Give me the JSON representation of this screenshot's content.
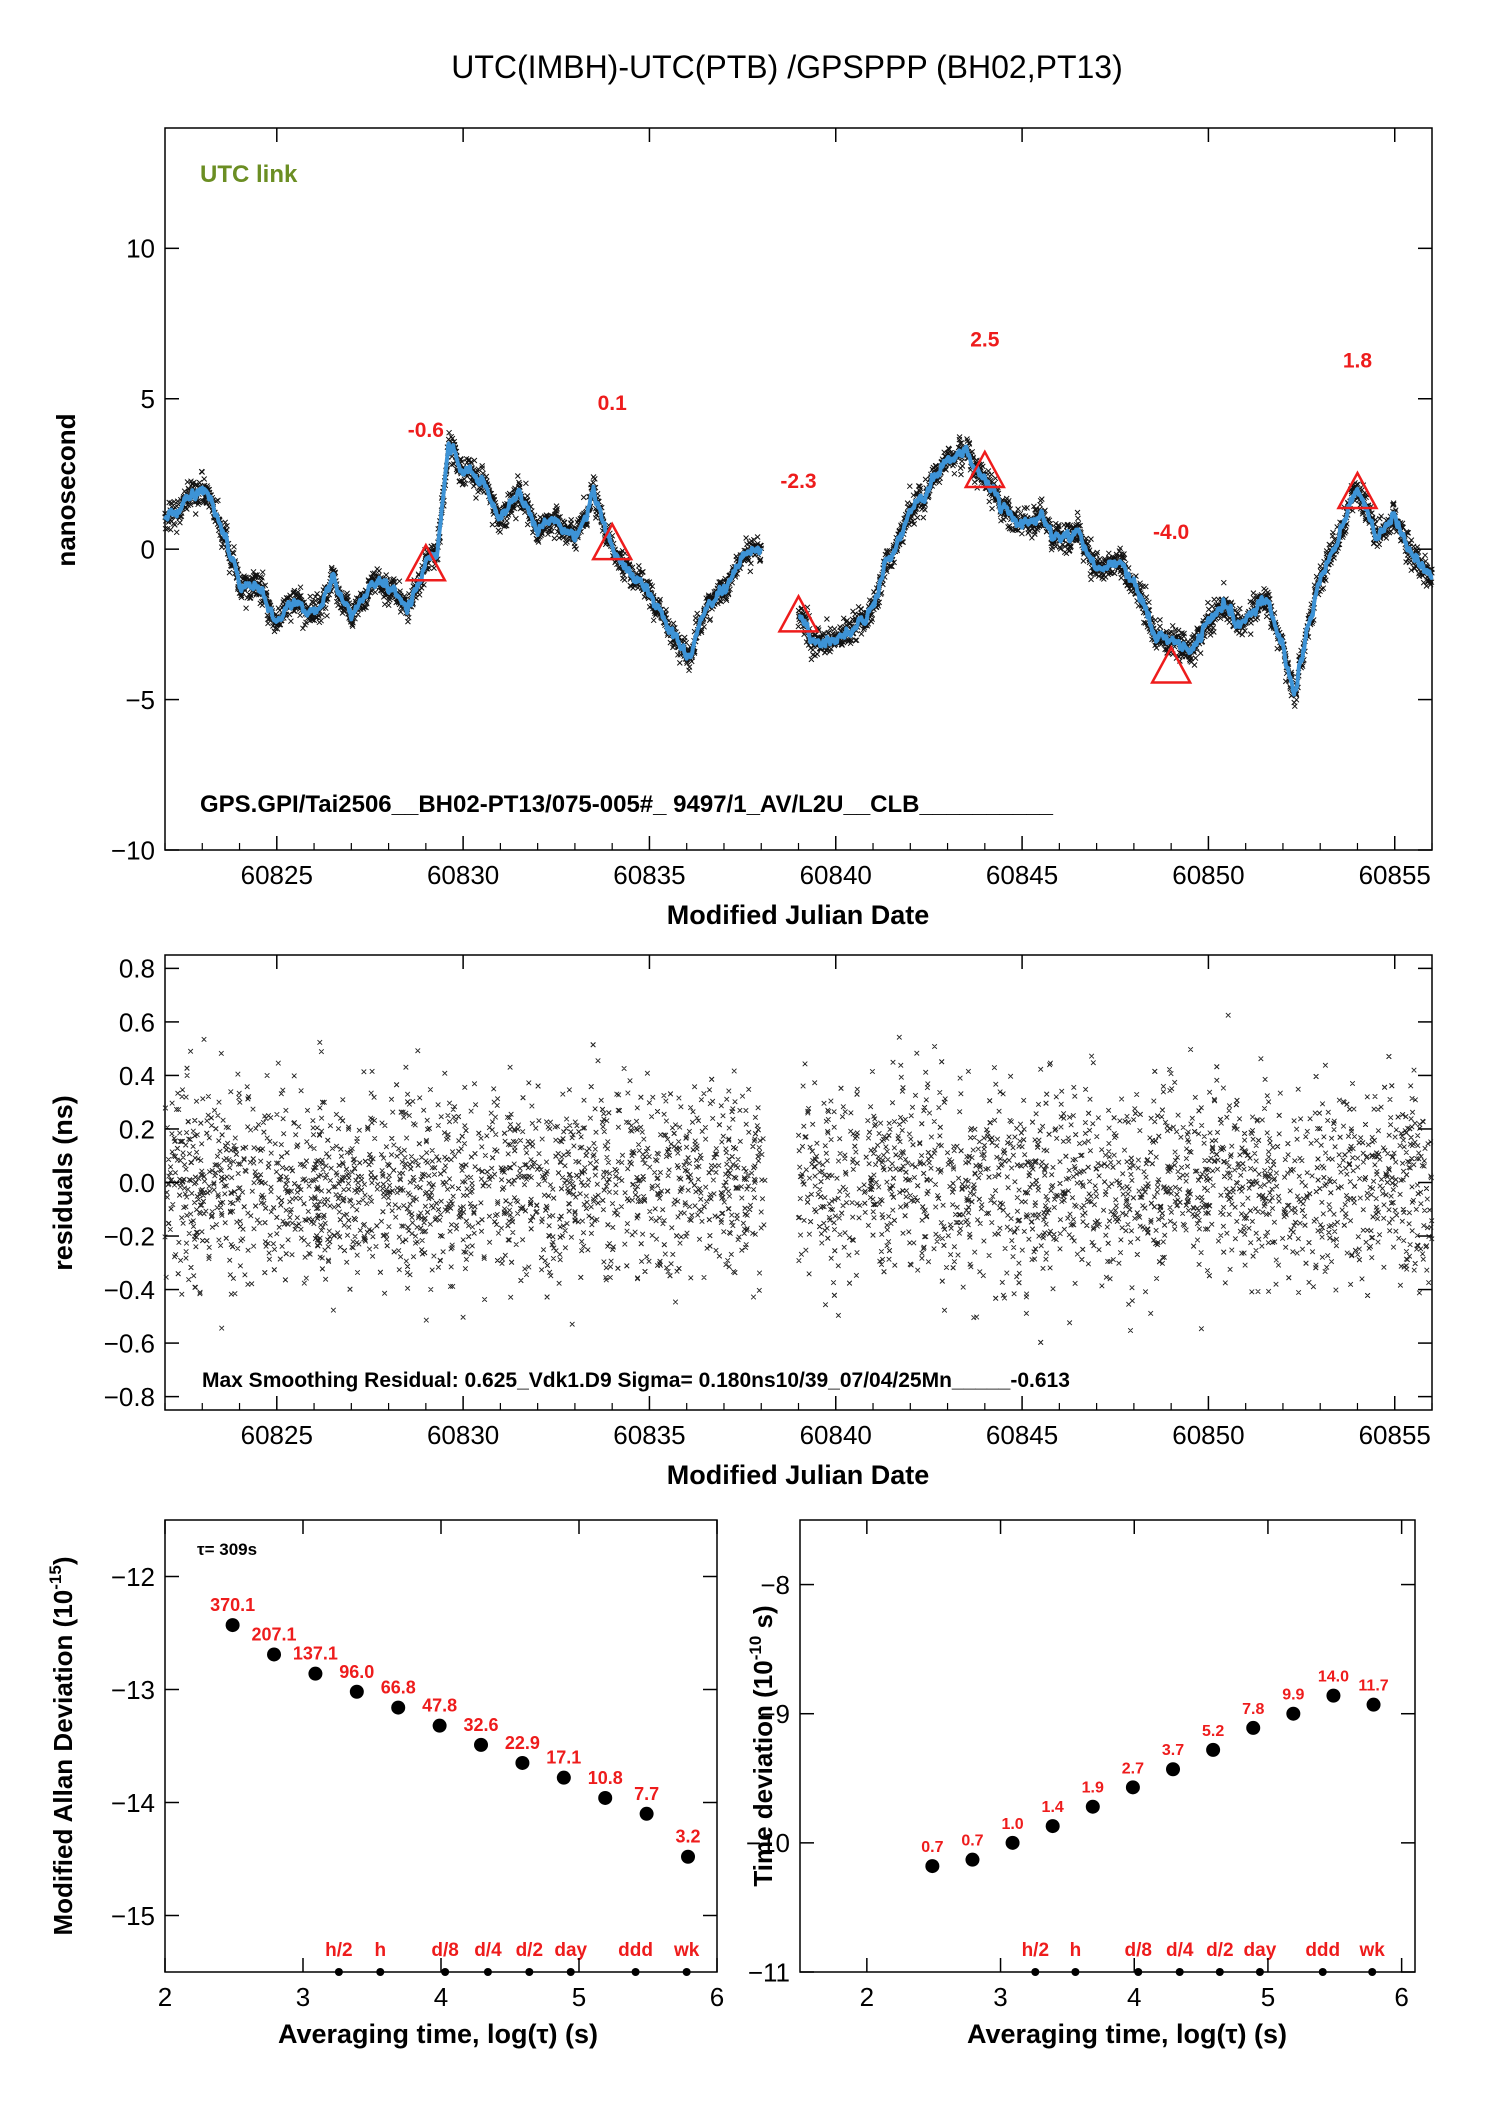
{
  "page_title": "UTC(IMBH)-UTC(PTB)  /GPSPPP  (BH02,PT13)",
  "colors": {
    "series": "#3d93d6",
    "points": "#000000",
    "marker": "#ee1c1c",
    "link_label": "#6b8e23"
  },
  "chart_data": [
    {
      "id": "time_series",
      "type": "line",
      "link_label": "UTC link",
      "annotation": "GPS.GPI/Tai2506__BH02-PT13/075-005#_  9497/1_AV/L2U__CLB__________",
      "xlabel": "Modified Julian Date",
      "ylabel": "nanosecond",
      "xlim": [
        60822,
        60856
      ],
      "ylim": [
        -10,
        14
      ],
      "x_ticks": [
        60825,
        60830,
        60835,
        60840,
        60845,
        60850,
        60855
      ],
      "y_ticks": [
        -10,
        -5,
        0,
        5,
        10
      ],
      "y_tick_labels": [
        "−10",
        "−5",
        "0",
        "5",
        "10"
      ],
      "gap": [
        60838.1,
        60839.0
      ],
      "series": [
        {
          "x": [
            60822.0,
            60822.5,
            60823.0,
            60823.3,
            60823.7,
            60824.0,
            60824.5,
            60825.0,
            60825.5,
            60826.0,
            60826.5,
            60827.0,
            60827.5,
            60828.0,
            60828.5,
            60829.0,
            60829.3,
            60829.6,
            60830.0,
            60830.5,
            60831.0,
            60831.5,
            60832.0,
            60832.5,
            60833.0,
            60833.5,
            60834.0,
            60834.5,
            60835.0,
            60835.5,
            60836.0,
            60836.5,
            60837.0,
            60837.5,
            60838.0
          ],
          "y": [
            1.0,
            1.6,
            2.0,
            1.5,
            0.0,
            -1.1,
            -1.3,
            -2.5,
            -1.7,
            -2.2,
            -1.0,
            -2.3,
            -1.2,
            -1.1,
            -2.2,
            -0.5,
            -0.1,
            3.5,
            2.5,
            2.3,
            1.0,
            2.0,
            0.5,
            1.0,
            0.3,
            1.8,
            0.1,
            -1.0,
            -1.5,
            -2.5,
            -3.7,
            -2.0,
            -1.3,
            -0.2,
            0.0
          ]
        },
        {
          "x": [
            60839.0,
            60839.5,
            60840.0,
            60840.5,
            60841.0,
            60841.5,
            60842.0,
            60842.5,
            60843.0,
            60843.5,
            60843.8,
            60844.0,
            60844.5,
            60845.0,
            60845.5,
            60846.0,
            60846.5,
            60847.0,
            60847.5,
            60848.0,
            60848.5,
            60849.0,
            60849.5,
            60850.0,
            60850.5,
            60851.0,
            60851.5,
            60852.0,
            60852.3,
            60852.7,
            60853.0,
            60853.5,
            60854.0,
            60854.5,
            60855.0,
            60855.5,
            60856.0
          ],
          "y": [
            -2.2,
            -3.2,
            -3.0,
            -2.7,
            -1.9,
            -0.2,
            1.2,
            2.0,
            3.0,
            3.3,
            2.6,
            2.4,
            1.2,
            0.7,
            1.1,
            0.3,
            0.7,
            -0.8,
            -0.5,
            -1.0,
            -2.8,
            -3.0,
            -3.5,
            -2.4,
            -1.9,
            -2.5,
            -1.6,
            -3.3,
            -4.8,
            -2.4,
            -1.0,
            0.5,
            2.2,
            0.4,
            1.1,
            -0.2,
            -0.9
          ]
        }
      ],
      "markers": [
        {
          "x": 60829.0,
          "y": -0.6,
          "label": "-0.6",
          "label_y": 4.0
        },
        {
          "x": 60834.0,
          "y": 0.1,
          "label": "0.1",
          "label_y": 4.9
        },
        {
          "x": 60839.0,
          "y": -2.3,
          "label": "-2.3",
          "label_y": 2.3
        },
        {
          "x": 60844.0,
          "y": 2.5,
          "label": "2.5",
          "label_y": 7.0
        },
        {
          "x": 60849.0,
          "y": -4.0,
          "label": "-4.0",
          "label_y": 0.6
        },
        {
          "x": 60854.0,
          "y": 1.8,
          "label": "1.8",
          "label_y": 6.3
        }
      ]
    },
    {
      "id": "residuals",
      "type": "scatter",
      "xlabel": "Modified Julian Date",
      "ylabel": "residuals (ns)",
      "annotation": "Max Smoothing Residual: 0.625_Vdk1.D9  Sigma= 0.180ns10/39_07/04/25Mn_____-0.613",
      "xlim": [
        60822,
        60856
      ],
      "ylim": [
        -0.85,
        0.85
      ],
      "x_ticks": [
        60825,
        60830,
        60835,
        60840,
        60845,
        60850,
        60855
      ],
      "y_ticks": [
        -0.8,
        -0.6,
        -0.4,
        -0.2,
        0.0,
        0.2,
        0.4,
        0.6,
        0.8
      ],
      "y_tick_labels": [
        "−0.8",
        "−0.6",
        "−0.4",
        "−0.2",
        "0.0",
        "0.2",
        "0.4",
        "0.6",
        "0.8"
      ],
      "sigma": 0.18,
      "max_residual": 0.625,
      "min_residual": -0.613,
      "gap": [
        60838.1,
        60839.0
      ]
    },
    {
      "id": "mdev",
      "type": "scatter",
      "tau_note": "τ= 309s",
      "xlabel": "Averaging time, log(τ) (s)",
      "ylabel": "Modified Allan Deviation (10⁻¹⁵)",
      "ylabel_main": "Modified Allan Deviation (10",
      "ylabel_exp": "-15",
      "ylabel_end": ")",
      "xlim": [
        2,
        6
      ],
      "ylim": [
        -15.5,
        -11.5
      ],
      "x_ticks": [
        2,
        3,
        4,
        5,
        6
      ],
      "y_ticks": [
        -15,
        -14,
        -13,
        -12
      ],
      "y_tick_labels": [
        "−15",
        "−14",
        "−13",
        "−12"
      ],
      "x": [
        2.49,
        2.79,
        3.09,
        3.39,
        3.69,
        3.99,
        4.29,
        4.59,
        4.89,
        5.19,
        5.49,
        5.79
      ],
      "y": [
        -12.43,
        -12.69,
        -12.86,
        -13.02,
        -13.16,
        -13.32,
        -13.49,
        -13.65,
        -13.78,
        -13.96,
        -14.1,
        -14.48
      ],
      "labels": [
        "370.1",
        "207.1",
        "137.1",
        "96.0",
        "66.8",
        "47.8",
        "32.6",
        "22.9",
        "17.1",
        "10.8",
        "7.7",
        "3.2"
      ],
      "time_markers": [
        {
          "label": "h/2",
          "x": 3.26
        },
        {
          "label": "h",
          "x": 3.56
        },
        {
          "label": "d/8",
          "x": 4.03
        },
        {
          "label": "d/4",
          "x": 4.34
        },
        {
          "label": "d/2",
          "x": 4.64
        },
        {
          "label": "day",
          "x": 4.94
        },
        {
          "label": "ddd",
          "x": 5.41
        },
        {
          "label": "wk",
          "x": 5.78
        }
      ]
    },
    {
      "id": "tdev",
      "type": "scatter",
      "xlabel": "Averaging time, log(τ) (s)",
      "ylabel": "Time deviation (10⁻¹⁰ s)",
      "ylabel_main": "Time deviation (10",
      "ylabel_exp": "-10",
      "ylabel_end": " s)",
      "xlim": [
        1.5,
        6.1
      ],
      "ylim": [
        -11,
        -7.5
      ],
      "x_ticks": [
        2,
        3,
        4,
        5,
        6
      ],
      "y_ticks": [
        -11,
        -10,
        -9,
        -8
      ],
      "y_tick_labels": [
        "−11",
        "−10",
        "−9",
        "−8"
      ],
      "x": [
        2.49,
        2.79,
        3.09,
        3.39,
        3.69,
        3.99,
        4.29,
        4.59,
        4.89,
        5.19,
        5.49,
        5.79
      ],
      "y": [
        -10.18,
        -10.13,
        -10.0,
        -9.87,
        -9.72,
        -9.57,
        -9.43,
        -9.28,
        -9.11,
        -9.0,
        -8.86,
        -8.93
      ],
      "labels": [
        "0.7",
        "0.7",
        "1.0",
        "1.4",
        "1.9",
        "2.7",
        "3.7",
        "5.2",
        "7.8",
        "9.9",
        "14.0",
        "11.7"
      ],
      "time_markers": [
        {
          "label": "h/2",
          "x": 3.26
        },
        {
          "label": "h",
          "x": 3.56
        },
        {
          "label": "d/8",
          "x": 4.03
        },
        {
          "label": "d/4",
          "x": 4.34
        },
        {
          "label": "d/2",
          "x": 4.64
        },
        {
          "label": "day",
          "x": 4.94
        },
        {
          "label": "ddd",
          "x": 5.41
        },
        {
          "label": "wk",
          "x": 5.78
        }
      ]
    }
  ]
}
